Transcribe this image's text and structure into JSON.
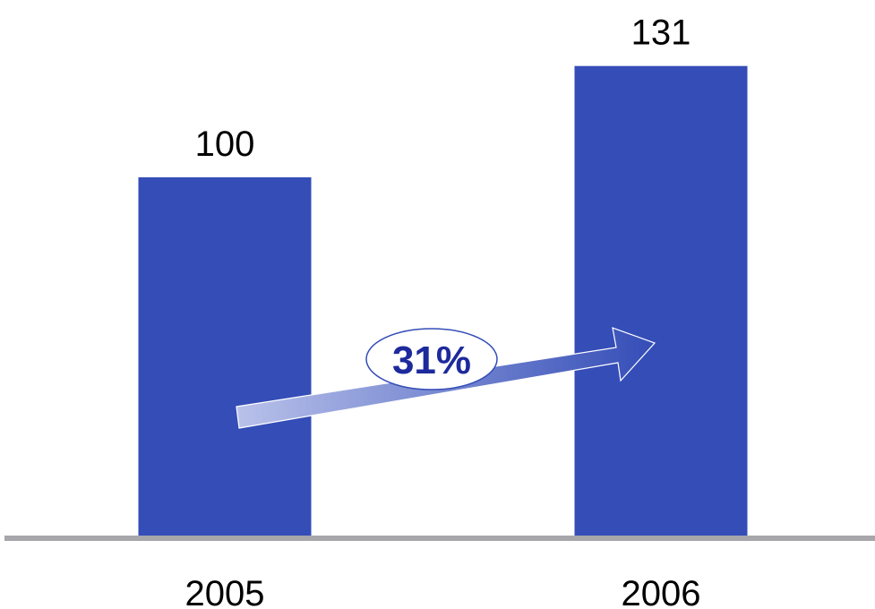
{
  "chart_data": {
    "type": "bar",
    "categories": [
      "2005",
      "2006"
    ],
    "values": [
      100,
      131
    ],
    "value_labels": [
      "100",
      "131"
    ],
    "title": "",
    "xlabel": "",
    "ylabel": "",
    "ylim": [
      0,
      131
    ],
    "grid": false,
    "annotation": {
      "label": "31%",
      "meaning": "growth from 2005 to 2006",
      "shape": "arrow with ellipse badge"
    }
  },
  "colors": {
    "bar": "#344db7",
    "axis": "#a6a6ab",
    "arrow_start": "#b9c2ea",
    "arrow_end": "#344db7",
    "badge_text": "#1d2a9c",
    "badge_border": "#344db7",
    "badge_fill": "#ffffff"
  }
}
